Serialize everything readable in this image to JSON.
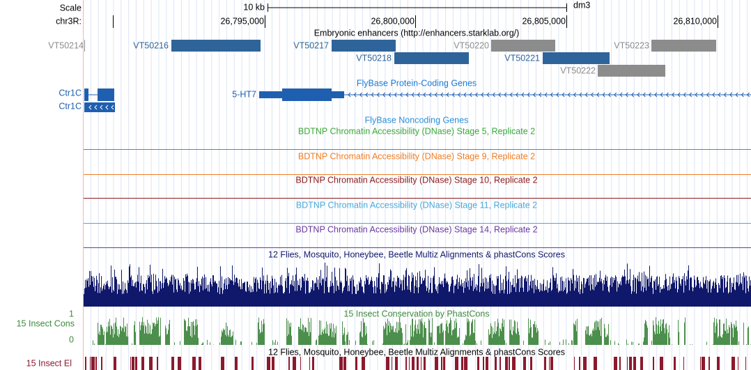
{
  "ruler": {
    "scale_label": "Scale",
    "scale_bar": "10 kb",
    "assembly": "dm3",
    "chrom_label": "chr3R:",
    "ticks": [
      "26,795,000",
      "26,800,000",
      "26,805,000",
      "26,810,000"
    ]
  },
  "enhancers": {
    "title": "Embryonic enhancers (http://enhancers.starklab.org/)",
    "items": [
      "VT50214",
      "VT50216",
      "VT50217",
      "VT50218",
      "VT50220",
      "VT50221",
      "VT50222",
      "VT50223"
    ]
  },
  "genes": {
    "title": "FlyBase Protein-Coding Genes",
    "items": [
      "Ctr1C",
      "Ctr1C",
      "5-HT7"
    ]
  },
  "noncoding": {
    "title": "FlyBase Noncoding Genes"
  },
  "dnase": [
    "BDTNP Chromatin Accessibility (DNase) Stage 5, Replicate 2",
    "BDTNP Chromatin Accessibility (DNase) Stage 9, Replicate 2",
    "BDTNP Chromatin Accessibility (DNase) Stage 10, Replicate 2",
    "BDTNP Chromatin Accessibility (DNase) Stage 11, Replicate 2",
    "BDTNP Chromatin Accessibility (DNase) Stage 14, Replicate 2"
  ],
  "multiz": {
    "title": "12 Flies, Mosquito, Honeybee, Beetle Multiz Alignments & phastCons Scores"
  },
  "phastcons": {
    "title": "15 Insect Conservation by PhastCons",
    "label": "15 Insect Cons",
    "ymax": "1",
    "ymin": "0"
  },
  "elements": {
    "title": "12 Flies, Mosquito, Honeybee, Beetle Multiz Alignments & phastCons Scores",
    "label": "15 Insect El"
  }
}
